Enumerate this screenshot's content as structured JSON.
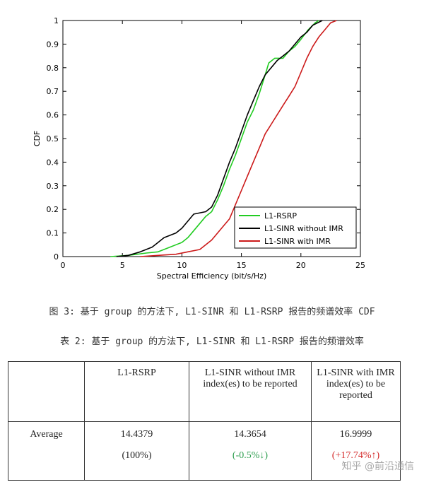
{
  "chart_data": {
    "type": "line",
    "xlabel": "Spectral Efficiency (bit/s/Hz)",
    "ylabel": "CDF",
    "xlim": [
      0,
      25
    ],
    "ylim": [
      0,
      1
    ],
    "xticks": [
      "0",
      "5",
      "10",
      "15",
      "20",
      "25"
    ],
    "yticks": [
      "0",
      "0.1",
      "0.2",
      "0.3",
      "0.4",
      "0.5",
      "0.6",
      "0.7",
      "0.8",
      "0.9",
      "1"
    ],
    "legend_position": "bottom-right",
    "series": [
      {
        "name": "L1-RSRP",
        "color": "#22cc22",
        "points": [
          [
            4.0,
            0
          ],
          [
            5.5,
            0.005
          ],
          [
            7.0,
            0.015
          ],
          [
            8.0,
            0.02
          ],
          [
            9.0,
            0.04
          ],
          [
            10.0,
            0.06
          ],
          [
            10.5,
            0.08
          ],
          [
            11.0,
            0.11
          ],
          [
            11.5,
            0.14
          ],
          [
            12.0,
            0.17
          ],
          [
            12.5,
            0.19
          ],
          [
            13.0,
            0.24
          ],
          [
            13.5,
            0.3
          ],
          [
            14.0,
            0.37
          ],
          [
            14.5,
            0.43
          ],
          [
            15.0,
            0.5
          ],
          [
            15.5,
            0.57
          ],
          [
            16.0,
            0.62
          ],
          [
            16.5,
            0.69
          ],
          [
            17.0,
            0.77
          ],
          [
            17.3,
            0.82
          ],
          [
            17.8,
            0.84
          ],
          [
            18.5,
            0.84
          ],
          [
            19.0,
            0.87
          ],
          [
            19.5,
            0.89
          ],
          [
            20.0,
            0.92
          ],
          [
            20.6,
            0.96
          ],
          [
            21.2,
            0.99
          ],
          [
            21.5,
            1.0
          ]
        ]
      },
      {
        "name": "L1-SINR without IMR",
        "color": "#000000",
        "points": [
          [
            4.5,
            0
          ],
          [
            5.5,
            0.005
          ],
          [
            6.5,
            0.02
          ],
          [
            7.5,
            0.04
          ],
          [
            8.0,
            0.06
          ],
          [
            8.5,
            0.08
          ],
          [
            9.5,
            0.1
          ],
          [
            10.0,
            0.12
          ],
          [
            10.5,
            0.15
          ],
          [
            11.0,
            0.18
          ],
          [
            12.0,
            0.19
          ],
          [
            12.5,
            0.21
          ],
          [
            13.0,
            0.26
          ],
          [
            13.5,
            0.33
          ],
          [
            14.0,
            0.4
          ],
          [
            14.5,
            0.46
          ],
          [
            15.0,
            0.53
          ],
          [
            15.5,
            0.6
          ],
          [
            16.0,
            0.66
          ],
          [
            16.5,
            0.72
          ],
          [
            17.0,
            0.77
          ],
          [
            17.5,
            0.8
          ],
          [
            18.0,
            0.83
          ],
          [
            18.5,
            0.85
          ],
          [
            19.0,
            0.87
          ],
          [
            19.5,
            0.9
          ],
          [
            20.0,
            0.93
          ],
          [
            20.5,
            0.95
          ],
          [
            21.0,
            0.98
          ],
          [
            21.8,
            1.0
          ]
        ]
      },
      {
        "name": "L1-SINR with IMR",
        "color": "#cc1a1a",
        "points": [
          [
            6.5,
            0
          ],
          [
            8.0,
            0.005
          ],
          [
            9.5,
            0.01
          ],
          [
            10.5,
            0.02
          ],
          [
            11.5,
            0.03
          ],
          [
            12.5,
            0.07
          ],
          [
            13.0,
            0.1
          ],
          [
            13.5,
            0.13
          ],
          [
            14.0,
            0.16
          ],
          [
            14.5,
            0.22
          ],
          [
            15.0,
            0.28
          ],
          [
            15.5,
            0.34
          ],
          [
            16.0,
            0.4
          ],
          [
            16.5,
            0.46
          ],
          [
            17.0,
            0.52
          ],
          [
            17.5,
            0.56
          ],
          [
            18.0,
            0.6
          ],
          [
            18.5,
            0.64
          ],
          [
            19.0,
            0.68
          ],
          [
            19.5,
            0.72
          ],
          [
            20.0,
            0.78
          ],
          [
            20.5,
            0.84
          ],
          [
            21.0,
            0.89
          ],
          [
            21.5,
            0.93
          ],
          [
            22.0,
            0.96
          ],
          [
            22.5,
            0.99
          ],
          [
            23.0,
            1.0
          ]
        ]
      }
    ]
  },
  "captions": {
    "figure": "图 3: 基于 group 的方法下, L1-SINR 和 L1-RSRP 报告的频谱效率 CDF",
    "table": "表 2: 基于 group 的方法下, L1-SINR 和 L1-RSRP 报告的频谱效率"
  },
  "table": {
    "headers": [
      "",
      "L1-RSRP",
      "L1-SINR without IMR index(es) to be reported",
      "L1-SINR with IMR index(es) to be reported"
    ],
    "row_label": "Average",
    "values": [
      "14.4379",
      "14.3654",
      "16.9999"
    ],
    "percents": [
      "(100%)",
      "(-0.5%↓)",
      "(+17.74%↑)"
    ],
    "percent_colors": [
      "#222222",
      "#2e9e4f",
      "#d42a2a"
    ]
  },
  "watermark": "知乎 @前沿通信"
}
